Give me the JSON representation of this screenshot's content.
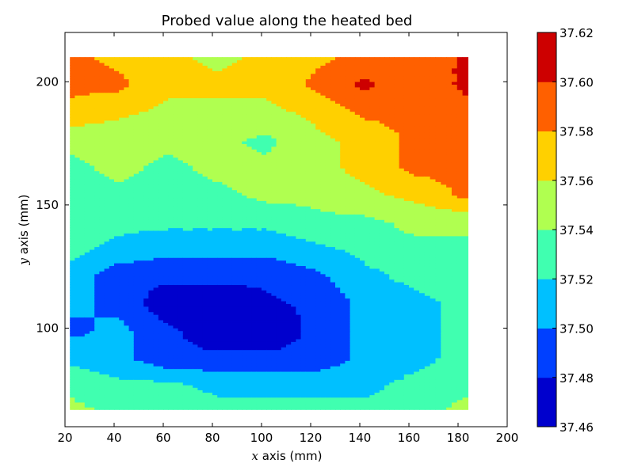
{
  "chart_data": {
    "type": "heatmap",
    "subtype": "filled-contour",
    "title": "Probed value along the heated bed",
    "xlabel_var": "x",
    "xlabel_rest": " axis (mm)",
    "ylabel_var": "y",
    "ylabel_rest": " axis (mm)",
    "xlim": [
      20,
      200
    ],
    "ylim": [
      60,
      220
    ],
    "xticks": [
      20,
      40,
      60,
      80,
      100,
      120,
      140,
      160,
      180,
      200
    ],
    "yticks": [
      100,
      150,
      200
    ],
    "grid": false,
    "colormap": "jet",
    "colorbar": {
      "levels": [
        37.46,
        37.48,
        37.5,
        37.52,
        37.54,
        37.56,
        37.58,
        37.6,
        37.62
      ],
      "tick_labels": [
        "37.46",
        "37.48",
        "37.50",
        "37.52",
        "37.54",
        "37.56",
        "37.58",
        "37.60",
        "37.62"
      ],
      "band_colors": [
        "#0000cd",
        "#0040ff",
        "#00c0ff",
        "#40ffb0",
        "#b0ff50",
        "#ffd000",
        "#ff6000",
        "#cd0000"
      ]
    },
    "x": [
      22,
      42,
      62,
      82,
      102,
      122,
      142,
      162,
      184
    ],
    "y": [
      67,
      77,
      88,
      99,
      110,
      121,
      132,
      143,
      154,
      165,
      176,
      188,
      199,
      210
    ],
    "z": [
      [
        37.545,
        37.535,
        37.535,
        37.525,
        37.525,
        37.525,
        37.525,
        37.535,
        37.545
      ],
      [
        37.535,
        37.525,
        37.525,
        37.515,
        37.515,
        37.515,
        37.515,
        37.525,
        37.535
      ],
      [
        37.515,
        37.505,
        37.485,
        37.485,
        37.485,
        37.485,
        37.505,
        37.515,
        37.525
      ],
      [
        37.495,
        37.505,
        37.485,
        37.465,
        37.465,
        37.485,
        37.505,
        37.515,
        37.525
      ],
      [
        37.505,
        37.495,
        37.465,
        37.465,
        37.475,
        37.485,
        37.505,
        37.515,
        37.525
      ],
      [
        37.515,
        37.485,
        37.485,
        37.485,
        37.485,
        37.495,
        37.515,
        37.525,
        37.525
      ],
      [
        37.525,
        37.515,
        37.505,
        37.505,
        37.505,
        37.515,
        37.525,
        37.535,
        37.535
      ],
      [
        37.525,
        37.525,
        37.525,
        37.525,
        37.525,
        37.535,
        37.535,
        37.545,
        37.545
      ],
      [
        37.535,
        37.535,
        37.535,
        37.535,
        37.545,
        37.545,
        37.555,
        37.565,
        37.585
      ],
      [
        37.535,
        37.545,
        37.535,
        37.545,
        37.545,
        37.555,
        37.565,
        37.585,
        37.585
      ],
      [
        37.545,
        37.545,
        37.545,
        37.545,
        37.535,
        37.555,
        37.565,
        37.585,
        37.585
      ],
      [
        37.575,
        37.565,
        37.555,
        37.555,
        37.555,
        37.565,
        37.585,
        37.585,
        37.595
      ],
      [
        37.585,
        37.585,
        37.565,
        37.565,
        37.565,
        37.585,
        37.605,
        37.585,
        37.605
      ],
      [
        37.585,
        37.575,
        37.565,
        37.555,
        37.565,
        37.575,
        37.585,
        37.585,
        37.605
      ]
    ]
  }
}
